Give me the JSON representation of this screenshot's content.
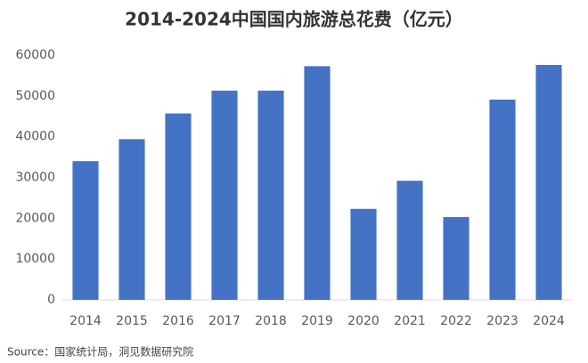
{
  "chart_data": {
    "type": "bar",
    "title": "2014-2024中国国内旅游总花费（亿元）",
    "categories": [
      "2014",
      "2015",
      "2016",
      "2017",
      "2018",
      "2019",
      "2020",
      "2021",
      "2022",
      "2023",
      "2024"
    ],
    "values": [
      34000,
      39400,
      45700,
      51300,
      51300,
      57300,
      22300,
      29200,
      20300,
      49100,
      57600
    ],
    "color": "#4472c4",
    "ylim": [
      0,
      60000
    ],
    "yticks": [
      0,
      10000,
      20000,
      30000,
      40000,
      50000,
      60000
    ],
    "grid": false,
    "source": "Source：国家统计局，洞见数据研究院"
  }
}
